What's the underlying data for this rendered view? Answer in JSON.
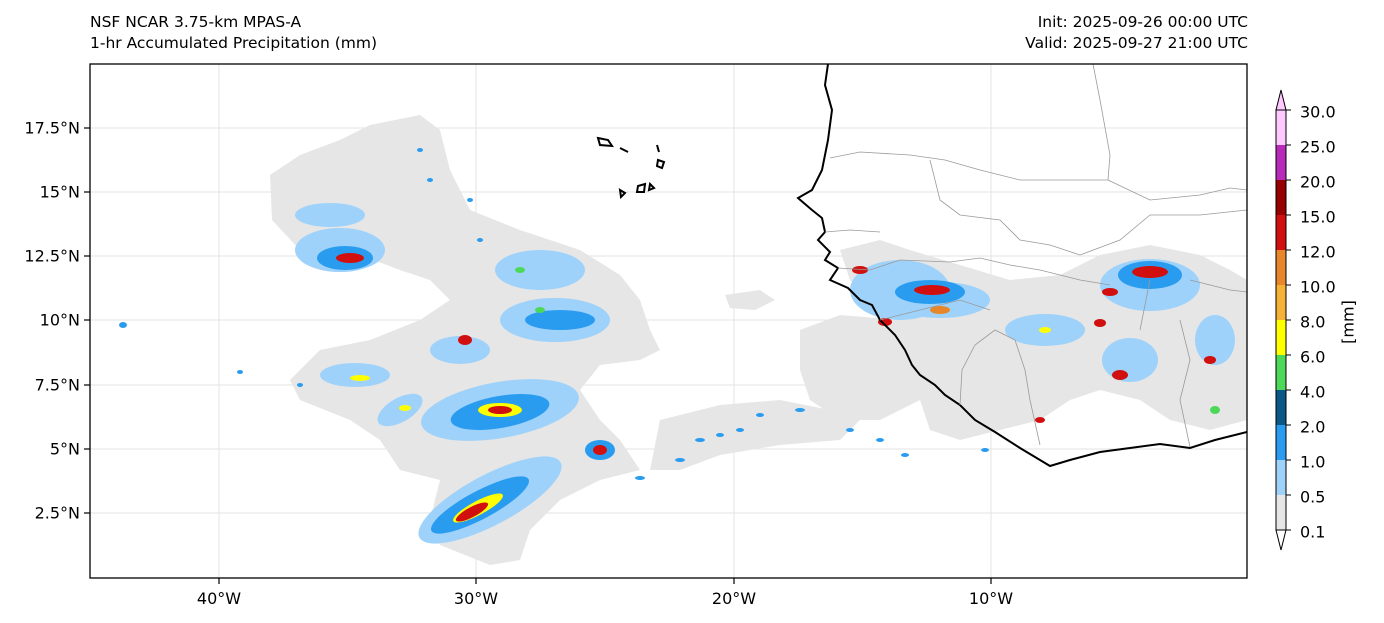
{
  "header": {
    "model_title": "NSF NCAR 3.75-km MPAS-A",
    "field_title": "1-hr Accumulated Precipitation (mm)",
    "init_label": "Init: 2025-09-26 00:00 UTC",
    "valid_label": "Valid: 2025-09-27 21:00 UTC"
  },
  "map": {
    "lat_ticks": [
      "17.5°N",
      "15°N",
      "12.5°N",
      "10°N",
      "7.5°N",
      "5°N",
      "2.5°N"
    ],
    "lon_ticks": [
      "40°W",
      "30°W",
      "20°W",
      "10°W"
    ],
    "coast_color": "#000000",
    "border_color": "#9a9a9a",
    "grid": true
  },
  "colorbar": {
    "title": "[mm]",
    "levels": [
      "30.0",
      "25.0",
      "20.0",
      "15.0",
      "12.0",
      "10.0",
      "8.0",
      "6.0",
      "4.0",
      "2.0",
      "1.0",
      "0.5",
      "0.1"
    ],
    "colors": [
      "#ffc8ff",
      "#b82bb8",
      "#960000",
      "#d10f0f",
      "#e8862a",
      "#f5b236",
      "#ffff00",
      "#4cd95a",
      "#0b5785",
      "#2a9cf0",
      "#9ed2fa",
      "#e6e6e6"
    ]
  }
}
